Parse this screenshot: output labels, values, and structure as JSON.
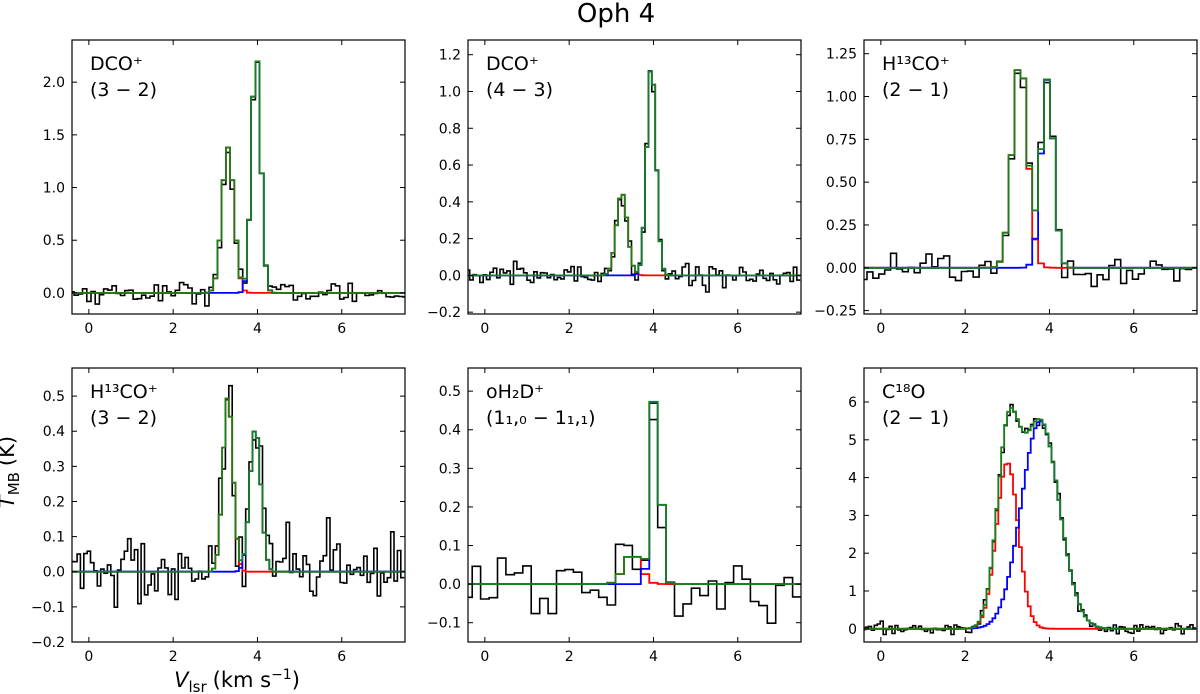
{
  "figure": {
    "title": "Oph 4",
    "xlabel": "V_lsr (km s^-1)",
    "xlabel_main": "V",
    "xlabel_sub": "lsr",
    "xlabel_unit_open": "(km s",
    "xlabel_unit_sup": "−1",
    "xlabel_unit_close": ")",
    "ylabel": "T_MB (K)",
    "ylabel_main": "T",
    "ylabel_sub": "MB",
    "ylabel_unit": "(K)"
  },
  "colors": {
    "observed": "#000000",
    "component1": "#ff0000",
    "component2": "#0000ff",
    "total": "#1a7f1a"
  },
  "chart_data": [
    {
      "type": "line",
      "id": "dco-32",
      "label_species": "DCO⁺",
      "label_transition": "(3 − 2)",
      "xlim": [
        -0.4,
        7.5
      ],
      "ylim": [
        -0.2,
        2.4
      ],
      "xticks": [
        0,
        2,
        4,
        6
      ],
      "yticks": [
        0.0,
        0.5,
        1.0,
        1.5,
        2.0
      ],
      "ytick_labels": [
        "0.0",
        "0.5",
        "1.0",
        "1.5",
        "2.0"
      ],
      "channel_width": 0.1,
      "noise": 0.05,
      "components": [
        {
          "name": "red",
          "amp": 1.38,
          "center": 3.3,
          "sigma": 0.14
        },
        {
          "name": "blue",
          "amp": 2.28,
          "center": 3.97,
          "sigma": 0.11
        }
      ]
    },
    {
      "type": "line",
      "id": "dco-43",
      "label_species": "DCO⁺",
      "label_transition": "(4 − 3)",
      "xlim": [
        -0.4,
        7.5
      ],
      "ylim": [
        -0.21,
        1.28
      ],
      "xticks": [
        0,
        2,
        4,
        6
      ],
      "yticks": [
        -0.2,
        0.0,
        0.2,
        0.4,
        0.6,
        0.8,
        1.0,
        1.2
      ],
      "ytick_labels": [
        "−0.2",
        "0.0",
        "0.2",
        "0.4",
        "0.6",
        "0.8",
        "1.0",
        "1.2"
      ],
      "channel_width": 0.08,
      "noise": 0.03,
      "components": [
        {
          "name": "red",
          "amp": 0.45,
          "center": 3.25,
          "sigma": 0.13
        },
        {
          "name": "blue",
          "amp": 1.15,
          "center": 3.95,
          "sigma": 0.11
        }
      ]
    },
    {
      "type": "line",
      "id": "h13co-21",
      "label_species": "H¹³CO⁺",
      "label_transition": "(2 − 1)",
      "xlim": [
        -0.4,
        7.5
      ],
      "ylim": [
        -0.27,
        1.33
      ],
      "xticks": [
        0,
        2,
        4,
        6
      ],
      "yticks": [
        -0.25,
        0.0,
        0.25,
        0.5,
        0.75,
        1.0,
        1.25
      ],
      "ytick_labels": [
        "−0.25",
        "0.00",
        "0.25",
        "0.50",
        "0.75",
        "1.00",
        "1.25"
      ],
      "channel_width": 0.14,
      "noise": 0.06,
      "components": [
        {
          "name": "red",
          "amp": 1.22,
          "center": 3.3,
          "sigma": 0.18
        },
        {
          "name": "blue",
          "amp": 1.1,
          "center": 3.95,
          "sigma": 0.15
        }
      ]
    },
    {
      "type": "line",
      "id": "h13co-32",
      "label_species": "H¹³CO⁺",
      "label_transition": "(3 − 2)",
      "xlim": [
        -0.4,
        7.5
      ],
      "ylim": [
        -0.2,
        0.58
      ],
      "xticks": [
        0,
        2,
        4,
        6
      ],
      "yticks": [
        -0.2,
        -0.1,
        0.0,
        0.1,
        0.2,
        0.3,
        0.4,
        0.5
      ],
      "ytick_labels": [
        "−0.2",
        "−0.1",
        "0.0",
        "0.1",
        "0.2",
        "0.3",
        "0.4",
        "0.5"
      ],
      "channel_width": 0.08,
      "noise": 0.055,
      "components": [
        {
          "name": "red",
          "amp": 0.5,
          "center": 3.3,
          "sigma": 0.12
        },
        {
          "name": "blue",
          "amp": 0.41,
          "center": 3.95,
          "sigma": 0.13
        }
      ]
    },
    {
      "type": "line",
      "id": "oh2d-110",
      "label_species": "oH₂D⁺",
      "label_transition": "(1₁,₀ − 1₁,₁)",
      "xlim": [
        -0.4,
        7.5
      ],
      "ylim": [
        -0.15,
        0.56
      ],
      "xticks": [
        0,
        2,
        4,
        6
      ],
      "yticks": [
        -0.1,
        0.0,
        0.1,
        0.2,
        0.3,
        0.4,
        0.5
      ],
      "ytick_labels": [
        "−0.1",
        "0.0",
        "0.1",
        "0.2",
        "0.3",
        "0.4",
        "0.5"
      ],
      "channel_width": 0.2,
      "noise": 0.045,
      "components": [
        {
          "name": "red",
          "amp": 0.08,
          "center": 3.5,
          "sigma": 0.2
        },
        {
          "name": "blue",
          "amp": 0.52,
          "center": 4.05,
          "sigma": 0.11
        }
      ]
    },
    {
      "type": "line",
      "id": "c18o-21",
      "label_species": "C¹⁸O",
      "label_transition": "(2 − 1)",
      "xlim": [
        -0.4,
        7.5
      ],
      "ylim": [
        -0.35,
        6.9
      ],
      "xticks": [
        0,
        2,
        4,
        6
      ],
      "yticks": [
        0,
        1,
        2,
        3,
        4,
        5,
        6
      ],
      "ytick_labels": [
        "0",
        "1",
        "2",
        "3",
        "4",
        "5",
        "6"
      ],
      "channel_width": 0.07,
      "noise": 0.08,
      "components": [
        {
          "name": "red",
          "amp": 4.4,
          "center": 3.0,
          "sigma": 0.26
        },
        {
          "name": "blue",
          "amp": 5.5,
          "center": 3.78,
          "sigma": 0.45
        }
      ]
    }
  ]
}
